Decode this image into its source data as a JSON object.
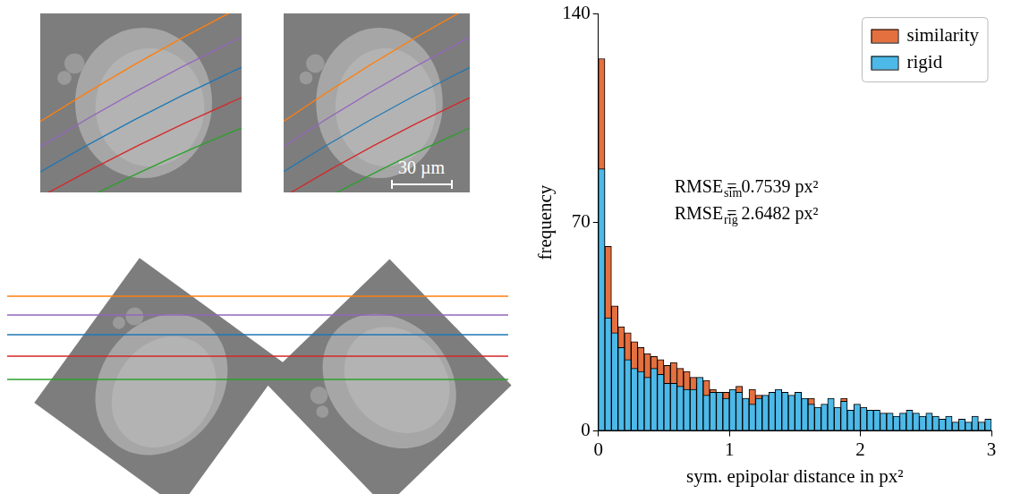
{
  "images": {
    "scale_bar": "30 µm"
  },
  "chart_data": {
    "type": "bar",
    "x_label": "sym. epipolar distance in px²",
    "y_label": "frequency",
    "bins": [
      0,
      0.05,
      0.1,
      0.15,
      0.2,
      0.25,
      0.3,
      0.35,
      0.4,
      0.45,
      0.5,
      0.55,
      0.6,
      0.65,
      0.7,
      0.75,
      0.8,
      0.85,
      0.9,
      0.95,
      1,
      1.05,
      1.1,
      1.15,
      1.2,
      1.25,
      1.3,
      1.35,
      1.4,
      1.45,
      1.5,
      1.55,
      1.6,
      1.65,
      1.7,
      1.75,
      1.8,
      1.85,
      1.9,
      1.95,
      2,
      2.05,
      2.1,
      2.15,
      2.2,
      2.25,
      2.3,
      2.35,
      2.4,
      2.45,
      2.5,
      2.55,
      2.6,
      2.65,
      2.7,
      2.75,
      2.8,
      2.85,
      2.9,
      2.95,
      3
    ],
    "series": [
      {
        "name": "similarity",
        "color": "#e4703f",
        "values": [
          125,
          62,
          42,
          35,
          33,
          30,
          28,
          26,
          25,
          24,
          22,
          23,
          21,
          20,
          18,
          16,
          17,
          14,
          13,
          13,
          13,
          15,
          11,
          14,
          12,
          11,
          9,
          10,
          10,
          8,
          9,
          8,
          11,
          7,
          8,
          6,
          6,
          11,
          5,
          7,
          4,
          5,
          4,
          3,
          4,
          3,
          3,
          2,
          3,
          2,
          2,
          1,
          2,
          1,
          1,
          2,
          1,
          1,
          0,
          1
        ]
      },
      {
        "name": "rigid",
        "color": "#4cb9e8",
        "values": [
          88,
          38,
          33,
          28,
          24,
          21,
          20,
          18,
          21,
          19,
          16,
          16,
          15,
          14,
          14,
          18,
          12,
          13,
          13,
          11,
          14,
          13,
          11,
          9,
          11,
          12,
          13,
          14,
          13,
          12,
          13,
          11,
          9,
          8,
          9,
          11,
          8,
          10,
          7,
          9,
          8,
          7,
          7,
          6,
          6,
          5,
          6,
          7,
          6,
          5,
          6,
          5,
          4,
          5,
          3,
          4,
          3,
          5,
          3,
          4
        ]
      }
    ],
    "stacked": false,
    "xlim": [
      0,
      3
    ],
    "xticks": [
      0,
      1,
      2,
      3
    ],
    "ylim": [
      0,
      140
    ],
    "yticks": [
      0,
      70,
      140
    ],
    "grid": false,
    "legend": "upper right",
    "annotations": [
      {
        "label": "RMSE",
        "subscript": "sim",
        "text": "= 0.7539 px²"
      },
      {
        "label": "RMSE",
        "subscript": "rig",
        "text": "= 2.6482 px²"
      }
    ]
  }
}
